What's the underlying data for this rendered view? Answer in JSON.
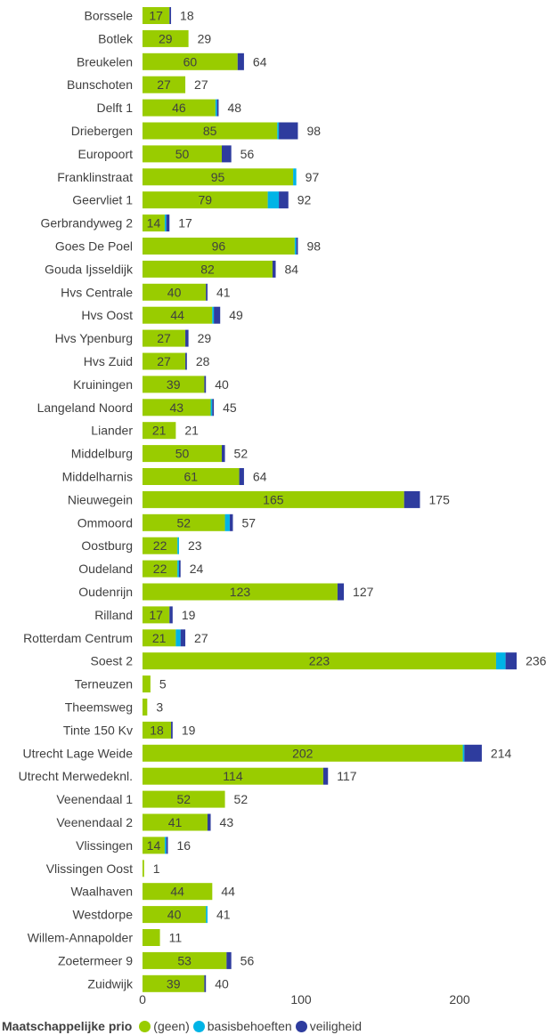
{
  "chart_data": {
    "type": "bar",
    "orientation": "horizontal",
    "stacked": true,
    "categories": [
      "Borssele",
      "Botlek",
      "Breukelen",
      "Bunschoten",
      "Delft 1",
      "Driebergen",
      "Europoort",
      "Franklinstraat",
      "Geervliet 1",
      "Gerbrandyweg 2",
      "Goes De Poel",
      "Gouda Ijsseldijk",
      "Hvs Centrale",
      "Hvs Oost",
      "Hvs Ypenburg",
      "Hvs Zuid",
      "Kruiningen",
      "Langeland Noord",
      "Liander",
      "Middelburg",
      "Middelharnis",
      "Nieuwegein",
      "Ommoord",
      "Oostburg",
      "Oudeland",
      "Oudenrijn",
      "Rilland",
      "Rotterdam Centrum",
      "Soest 2",
      "Terneuzen",
      "Theemsweg",
      "Tinte 150 Kv",
      "Utrecht Lage Weide",
      "Utrecht Merwedeknl.",
      "Veenendaal 1",
      "Veenendaal 2",
      "Vlissingen",
      "Vlissingen Oost",
      "Waalhaven",
      "Westdorpe",
      "Willem-Annapolder",
      "Zoetermeer 9",
      "Zuidwijk"
    ],
    "series": [
      {
        "name": "(geen)",
        "color": "#99cc00",
        "values": [
          17,
          29,
          60,
          27,
          46,
          85,
          50,
          95,
          79,
          14,
          96,
          82,
          40,
          44,
          27,
          27,
          39,
          43,
          21,
          50,
          61,
          165,
          52,
          22,
          22,
          123,
          17,
          21,
          223,
          5,
          3,
          18,
          202,
          114,
          52,
          41,
          14,
          1,
          44,
          40,
          11,
          53,
          39
        ]
      },
      {
        "name": "basisbehoeften",
        "color": "#00b4e6",
        "values": [
          0,
          0,
          0,
          0,
          1,
          1,
          0,
          2,
          7,
          1,
          1,
          0,
          0,
          1,
          0,
          0,
          0,
          1,
          0,
          0,
          0,
          0,
          3,
          1,
          1,
          0,
          0,
          3,
          6,
          0,
          0,
          0,
          1,
          0,
          0,
          0,
          1,
          0,
          0,
          1,
          0,
          0,
          0
        ]
      },
      {
        "name": "veiligheid",
        "color": "#2e3c9e",
        "values": [
          1,
          0,
          4,
          0,
          1,
          12,
          6,
          0,
          6,
          2,
          1,
          2,
          1,
          4,
          2,
          1,
          1,
          1,
          0,
          2,
          3,
          10,
          2,
          0,
          1,
          4,
          2,
          3,
          7,
          0,
          0,
          1,
          11,
          3,
          0,
          2,
          1,
          0,
          0,
          0,
          0,
          3,
          1
        ]
      }
    ],
    "totals": [
      18,
      29,
      64,
      27,
      48,
      98,
      56,
      97,
      92,
      17,
      98,
      84,
      41,
      49,
      29,
      28,
      40,
      45,
      21,
      52,
      64,
      175,
      57,
      23,
      24,
      127,
      19,
      27,
      236,
      5,
      3,
      19,
      214,
      117,
      52,
      43,
      16,
      1,
      44,
      41,
      11,
      56,
      40
    ],
    "inner_labels": [
      "17",
      "29",
      "60",
      "27",
      "46",
      "85",
      "50",
      "95",
      "79",
      "14",
      "96",
      "82",
      "40",
      "44",
      "27",
      "27",
      "39",
      "43",
      "21",
      "50",
      "61",
      "165",
      "52",
      "22",
      "22",
      "123",
      "17",
      "21",
      "223",
      "",
      "",
      "18",
      "202",
      "114",
      "52",
      "41",
      "14",
      "",
      "44",
      "40",
      "",
      "53",
      "39"
    ],
    "x_ticks": [
      "0",
      "100",
      "200"
    ],
    "xlim": [
      0,
      245
    ],
    "legend": {
      "title": "Maatschappelijke prio",
      "position": "bottom-left"
    }
  }
}
